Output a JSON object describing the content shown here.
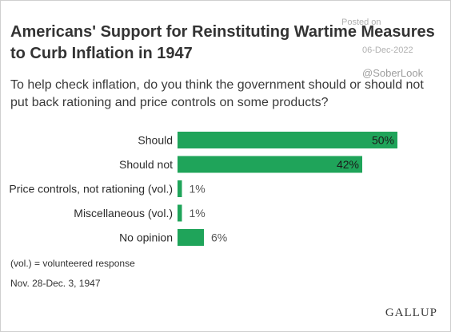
{
  "watermark": {
    "posted_on": "Posted on",
    "date": "06-Dec-2022",
    "handle": "@SoberLook"
  },
  "chart_data": {
    "type": "bar",
    "orientation": "horizontal",
    "title": "Americans' Support for Reinstituting Wartime Measures to Curb Inflation in 1947",
    "subtitle": "To help check inflation, do you think the government should or should not put back rationing and price controls on some products?",
    "categories": [
      "Should",
      "Should not",
      "Price controls, not rationing (vol.)",
      "Miscellaneous (vol.)",
      "No opinion"
    ],
    "values": [
      50,
      42,
      1,
      1,
      6
    ],
    "value_labels": [
      "50%",
      "42%",
      "1%",
      "1%",
      "6%"
    ],
    "unit": "%",
    "xlim": [
      0,
      100
    ],
    "bar_color": "#1fa45a",
    "grid": false,
    "legend": "none"
  },
  "notes": {
    "vol": "(vol.) = volunteered response",
    "dates": "Nov. 28-Dec. 3, 1947"
  },
  "logo": "GALLUP"
}
